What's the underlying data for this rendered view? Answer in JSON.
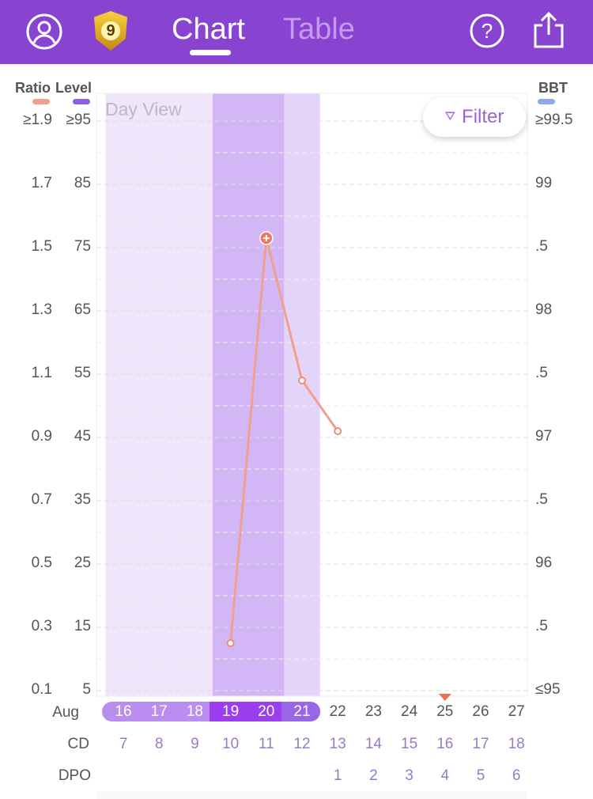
{
  "header": {
    "chart_tab": "Chart",
    "table_tab": "Table",
    "badge": "9"
  },
  "chart_data": {
    "type": "line",
    "title": "Day View",
    "left_axes": {
      "ratio_label": "Ratio",
      "level_label": "Level",
      "ratio_ticks": [
        "≥1.9",
        "1.7",
        "1.5",
        "1.3",
        "1.1",
        "0.9",
        "0.7",
        "0.5",
        "0.3",
        "0.1"
      ],
      "level_ticks": [
        "≥95",
        "85",
        "75",
        "65",
        "55",
        "45",
        "35",
        "25",
        "15",
        "5"
      ],
      "ratio_range": [
        0.1,
        1.9
      ]
    },
    "right_axis": {
      "label": "BBT",
      "ticks": [
        "≥99.5",
        "99",
        ".5",
        "98",
        ".5",
        "97",
        ".5",
        "96",
        ".5",
        "≤95"
      ]
    },
    "colors": {
      "ratio": "#f0a08c",
      "level": "#8e5ee6",
      "bbt": "#8fa8ee"
    },
    "dates_month": "Aug",
    "dates": [
      "16",
      "17",
      "18",
      "19",
      "20",
      "21",
      "22",
      "23",
      "24",
      "25",
      "26",
      "27"
    ],
    "cd_label": "CD",
    "cd": [
      "7",
      "8",
      "9",
      "10",
      "11",
      "12",
      "13",
      "14",
      "15",
      "16",
      "17",
      "18"
    ],
    "dpo_label": "DPO",
    "dpo": [
      "",
      "",
      "",
      "",
      "",
      "",
      "1",
      "2",
      "3",
      "4",
      "5",
      "6"
    ],
    "series": [
      {
        "name": "Ratio",
        "values": [
          null,
          null,
          null,
          0.25,
          1.53,
          1.08,
          0.92,
          null,
          null,
          null,
          null,
          null
        ]
      }
    ],
    "peak_index": 4,
    "today_index": 9,
    "phases": [
      {
        "from": 0,
        "to": 2,
        "level": "low"
      },
      {
        "from": 3,
        "to": 4,
        "level": "peak"
      },
      {
        "from": 5,
        "to": 5,
        "level": "high"
      }
    ]
  },
  "filter_label": "Filter"
}
